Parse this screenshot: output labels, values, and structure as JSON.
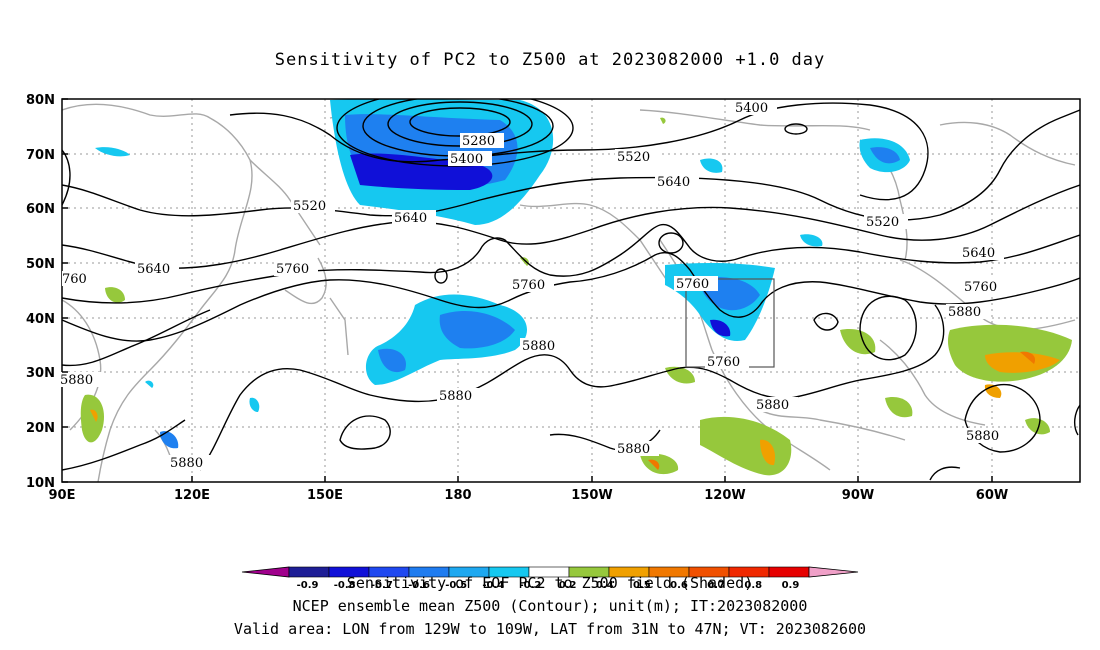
{
  "title": "Sensitivity of PC2 to Z500 at 2023082000 +1.0 day",
  "lat_labels": [
    "80N",
    "70N",
    "60N",
    "50N",
    "40N",
    "30N",
    "20N",
    "10N"
  ],
  "lon_labels": [
    "90E",
    "120E",
    "150E",
    "180",
    "150W",
    "120W",
    "90W",
    "60W"
  ],
  "contour_labels": [
    "5400",
    "5280",
    "5400",
    "5520",
    "5640",
    "5520",
    "5520",
    "5640",
    "5640",
    "5760",
    "5760",
    "760",
    "5760",
    "5640",
    "5760",
    "5880",
    "5880",
    "5760",
    "5880",
    "5880",
    "5880",
    "5880",
    "5880",
    "5880"
  ],
  "colorbar": {
    "tick_labels": [
      "-0.9",
      "-0.8",
      "-0.7",
      "-0.6",
      "-0.5",
      "-0.4",
      "-0.2",
      "0.2",
      "0.4",
      "0.5",
      "0.6",
      "0.7",
      "0.8",
      "0.9"
    ],
    "colors": [
      "#a0008c",
      "#1e1e96",
      "#1010d8",
      "#1f48f0",
      "#1f7cf0",
      "#1ea8f0",
      "#16c8f0",
      "#ffffff",
      "#96c83c",
      "#f0a000",
      "#f07800",
      "#f05000",
      "#f02800",
      "#e60000",
      "#f0a0c8"
    ]
  },
  "footer": {
    "line1": "Sensitivity of EOF PC2 to Z500 field (Shaded)",
    "line2": "NCEP ensemble mean Z500 (Contour); unit(m); IT:2023082000",
    "line3": "Valid area: LON from 129W to 109W, LAT from 31N to 47N; VT: 2023082600"
  }
}
